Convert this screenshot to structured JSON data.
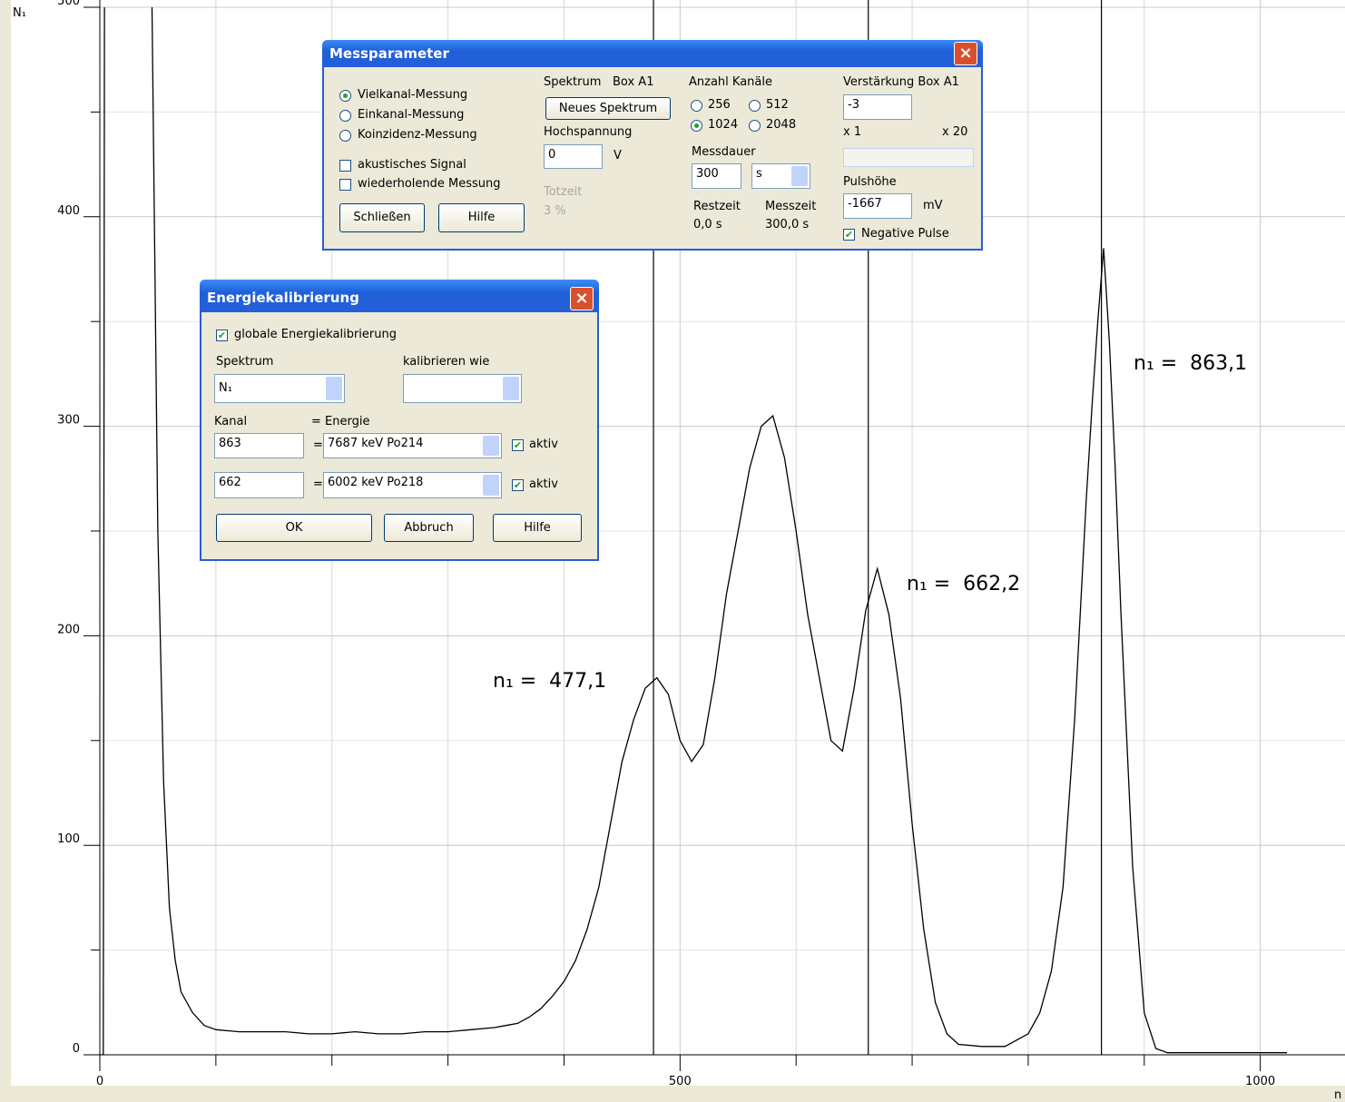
{
  "chart_data": {
    "type": "line",
    "y_label": "N₁",
    "x_label": "n",
    "x": [
      0,
      3,
      4,
      20,
      45,
      50,
      55,
      60,
      65,
      70,
      80,
      90,
      100,
      120,
      140,
      160,
      180,
      200,
      220,
      240,
      260,
      280,
      300,
      320,
      340,
      350,
      360,
      370,
      380,
      390,
      400,
      410,
      420,
      430,
      440,
      450,
      460,
      470,
      480,
      490,
      500,
      510,
      520,
      530,
      540,
      550,
      560,
      570,
      580,
      590,
      600,
      610,
      620,
      630,
      640,
      650,
      660,
      670,
      680,
      690,
      700,
      710,
      720,
      730,
      740,
      760,
      780,
      800,
      810,
      820,
      830,
      840,
      850,
      855,
      860,
      865,
      870,
      875,
      880,
      890,
      900,
      910,
      920,
      960,
      1000,
      1023
    ],
    "series": [
      {
        "color": "#000000",
        "values": [
          0,
          0,
          500,
          null,
          500,
          250,
          130,
          70,
          45,
          30,
          20,
          14,
          12,
          11,
          11,
          11,
          10,
          10,
          11,
          10,
          10,
          11,
          11,
          12,
          13,
          14,
          15,
          18,
          22,
          28,
          35,
          45,
          60,
          80,
          110,
          140,
          160,
          175,
          180,
          172,
          150,
          140,
          148,
          180,
          220,
          250,
          280,
          300,
          305,
          285,
          250,
          210,
          180,
          150,
          145,
          175,
          212,
          232,
          210,
          170,
          110,
          60,
          25,
          10,
          5,
          4,
          4,
          10,
          20,
          40,
          80,
          160,
          265,
          310,
          350,
          385,
          340,
          280,
          210,
          90,
          20,
          3,
          1,
          1,
          1,
          1
        ]
      }
    ],
    "xlim": [
      0,
      1073
    ],
    "ylim": [
      0,
      500
    ],
    "xticks": [
      0,
      500,
      1000
    ],
    "x_minor_ticks": [
      100,
      200,
      300,
      400,
      600,
      700,
      800,
      900
    ],
    "yticks": [
      0,
      100,
      200,
      300,
      400,
      500
    ],
    "y_minor_ticks": [
      50,
      150,
      250,
      350,
      450
    ],
    "grid": true,
    "markers": [
      {
        "x": 477.1,
        "label": "n₁ =  477,1"
      },
      {
        "x": 662.2,
        "label": "n₁ =  662,2"
      },
      {
        "x": 863.1,
        "label": "n₁ =  863,1"
      }
    ]
  },
  "messparameter": {
    "title": "Messparameter",
    "modes": [
      "Vielkanal-Messung",
      "Einkanal-Messung",
      "Koinzidenz-Messung"
    ],
    "options": [
      "akustisches Signal",
      "wiederholende Messung"
    ],
    "close_button": "Schließen",
    "help_button": "Hilfe",
    "spectrum_label": "Spektrum",
    "box_label": "Box A1",
    "new_spectrum_button": "Neues Spektrum",
    "voltage_label": "Hochspannung",
    "voltage": "0",
    "voltage_unit": "V",
    "dead_time_label": "Totzeit",
    "dead_time": "3 %",
    "channels_label": "Anzahl Kanäle",
    "channels": [
      "256",
      "512",
      "1024",
      "2048"
    ],
    "duration_label": "Messdauer",
    "duration": "300",
    "duration_unit": "s",
    "remaining_label": "Restzeit",
    "remaining": "0,0 s",
    "measured_label": "Messzeit",
    "measured": "300,0 s",
    "gain_label": "Verstärkung Box A1",
    "gain": "-3",
    "gain_min": "x 1",
    "gain_max": "x 20",
    "pulse_label": "Pulshöhe",
    "pulse": "-1667",
    "pulse_unit": "mV",
    "negative_pulse": "Negative Pulse"
  },
  "energiekalibrierung": {
    "title": "Energiekalibrierung",
    "global": "globale Energiekalibrierung",
    "spectrum_label": "Spektrum",
    "calibrate_like_label": "kalibrieren wie",
    "spectrum": "N₁",
    "channel_label": "Kanal",
    "energy_label": "= Energie",
    "equals": "=",
    "rows": [
      {
        "channel": "863",
        "energy": "7687 keV Po214",
        "active": "aktiv"
      },
      {
        "channel": "662",
        "energy": "6002 keV Po218",
        "active": "aktiv"
      }
    ],
    "ok_button": "OK",
    "cancel_button": "Abbruch",
    "help_button": "Hilfe"
  }
}
